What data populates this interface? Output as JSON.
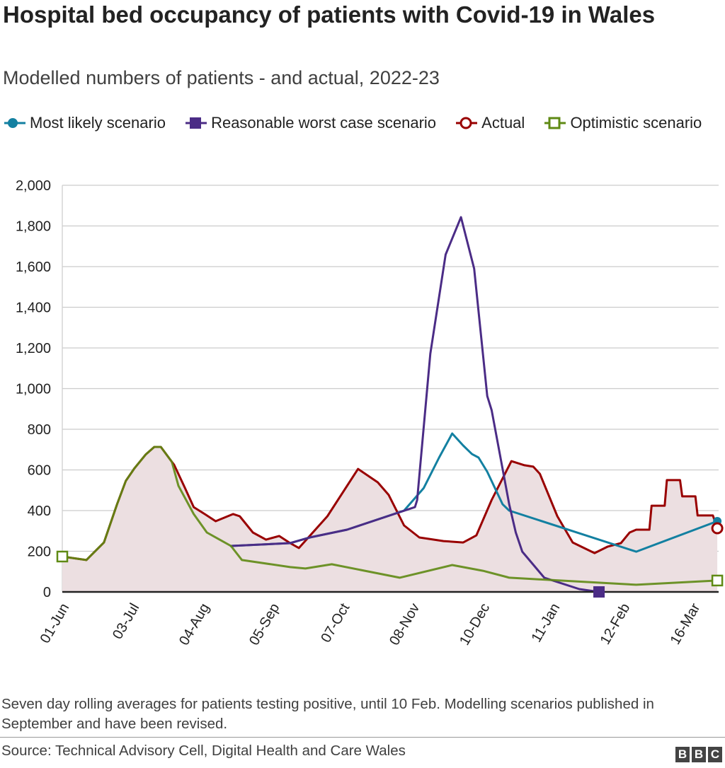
{
  "title": "Hospital bed occupancy of patients with Covid-19 in Wales",
  "subtitle": "Modelled numbers of patients - and actual, 2022-23",
  "footnote": "Seven day rolling averages for patients testing positive, until 10 Feb. Modelling scenarios published in September and have been revised.",
  "source": "Source: Technical Advisory Cell, Digital Health and Care Wales",
  "logo": [
    "B",
    "B",
    "C"
  ],
  "chart_data": {
    "type": "line",
    "title": "Hospital bed occupancy of patients with Covid-19 in Wales",
    "xlabel": "",
    "ylabel": "",
    "ylim": [
      0,
      2000
    ],
    "yticks": [
      "0",
      "200",
      "400",
      "600",
      "800",
      "1,000",
      "1,200",
      "1,400",
      "1,600",
      "1,800",
      "2,000"
    ],
    "ytick_values": [
      0,
      200,
      400,
      600,
      800,
      1000,
      1200,
      1400,
      1600,
      1800,
      2000
    ],
    "xlim": [
      "2022-06-01",
      "2023-03-27"
    ],
    "xticks": [
      "01-Jun",
      "03-Jul",
      "04-Aug",
      "05-Sep",
      "07-Oct",
      "08-Nov",
      "10-Dec",
      "11-Jan",
      "12-Feb",
      "16-Mar"
    ],
    "xtick_dates": [
      "2022-06-01",
      "2022-07-03",
      "2022-08-04",
      "2022-09-05",
      "2022-10-07",
      "2022-11-08",
      "2022-12-10",
      "2023-01-11",
      "2023-02-12",
      "2023-03-16"
    ],
    "grid": "horizontal",
    "legend_position": "top",
    "series": [
      {
        "name": "Actual",
        "color": "#990000",
        "fill": "#ecdfe1",
        "marker": "hollow-circle",
        "points": [
          [
            "2022-06-01",
            174
          ],
          [
            "2022-06-12",
            157
          ],
          [
            "2022-06-20",
            243
          ],
          [
            "2022-06-26",
            431
          ],
          [
            "2022-06-30",
            546
          ],
          [
            "2022-07-04",
            609
          ],
          [
            "2022-07-09",
            675
          ],
          [
            "2022-07-13",
            713
          ],
          [
            "2022-07-16",
            713
          ],
          [
            "2022-07-21",
            640
          ],
          [
            "2022-07-22",
            626
          ],
          [
            "2022-07-27",
            511
          ],
          [
            "2022-07-31",
            417
          ],
          [
            "2022-08-05",
            383
          ],
          [
            "2022-08-10",
            348
          ],
          [
            "2022-08-18",
            383
          ],
          [
            "2022-08-21",
            372
          ],
          [
            "2022-08-27",
            292
          ],
          [
            "2022-09-02",
            257
          ],
          [
            "2022-09-08",
            275
          ],
          [
            "2022-09-13",
            240
          ],
          [
            "2022-09-17",
            216
          ],
          [
            "2022-09-30",
            372
          ],
          [
            "2022-10-14",
            605
          ],
          [
            "2022-10-23",
            539
          ],
          [
            "2022-10-28",
            477
          ],
          [
            "2022-11-04",
            327
          ],
          [
            "2022-11-11",
            268
          ],
          [
            "2022-11-22",
            250
          ],
          [
            "2022-12-01",
            243
          ],
          [
            "2022-12-07",
            278
          ],
          [
            "2022-12-14",
            452
          ],
          [
            "2022-12-23",
            643
          ],
          [
            "2022-12-29",
            623
          ],
          [
            "2023-01-02",
            616
          ],
          [
            "2023-01-05",
            581
          ],
          [
            "2023-01-13",
            372
          ],
          [
            "2023-01-20",
            243
          ],
          [
            "2023-01-30",
            191
          ],
          [
            "2023-02-05",
            223
          ],
          [
            "2023-02-11",
            240
          ],
          [
            "2023-02-15",
            292
          ],
          [
            "2023-02-18",
            306
          ],
          [
            "2023-02-24",
            306
          ],
          [
            "2023-02-25",
            424
          ],
          [
            "2023-03-03",
            424
          ],
          [
            "2023-03-04",
            550
          ],
          [
            "2023-03-10",
            550
          ],
          [
            "2023-03-11",
            470
          ],
          [
            "2023-03-17",
            470
          ],
          [
            "2023-03-18",
            376
          ],
          [
            "2023-03-25",
            376
          ],
          [
            "2023-03-27",
            313
          ]
        ]
      },
      {
        "name": "Most likely scenario",
        "color": "#1380a1",
        "marker": "filled-circle",
        "points": [
          [
            "2022-08-17",
            226
          ],
          [
            "2022-09-13",
            240
          ],
          [
            "2022-09-22",
            268
          ],
          [
            "2022-10-09",
            306
          ],
          [
            "2022-11-04",
            400
          ],
          [
            "2022-11-13",
            511
          ],
          [
            "2022-11-20",
            661
          ],
          [
            "2022-11-26",
            779
          ],
          [
            "2022-12-01",
            720
          ],
          [
            "2022-12-05",
            678
          ],
          [
            "2022-12-08",
            661
          ],
          [
            "2022-12-12",
            591
          ],
          [
            "2022-12-19",
            431
          ],
          [
            "2022-12-22",
            400
          ],
          [
            "2023-02-18",
            198
          ],
          [
            "2023-03-27",
            348
          ]
        ]
      },
      {
        "name": "Reasonable worst case scenario",
        "color": "#4b2c86",
        "marker": "filled-square",
        "points": [
          [
            "2022-08-17",
            226
          ],
          [
            "2022-09-13",
            240
          ],
          [
            "2022-09-22",
            268
          ],
          [
            "2022-10-09",
            306
          ],
          [
            "2022-11-09",
            417
          ],
          [
            "2022-11-10",
            452
          ],
          [
            "2022-11-16",
            1172
          ],
          [
            "2022-11-23",
            1659
          ],
          [
            "2022-11-30",
            1843
          ],
          [
            "2022-12-06",
            1590
          ],
          [
            "2022-12-12",
            963
          ],
          [
            "2022-12-14",
            894
          ],
          [
            "2022-12-22",
            431
          ],
          [
            "2022-12-25",
            292
          ],
          [
            "2022-12-28",
            198
          ],
          [
            "2023-01-07",
            70
          ],
          [
            "2023-01-23",
            14
          ],
          [
            "2023-02-01",
            0
          ]
        ]
      },
      {
        "name": "Optimistic scenario",
        "color": "#5f8a14",
        "marker": "hollow-square",
        "points": [
          [
            "2022-06-01",
            174
          ],
          [
            "2022-06-12",
            157
          ],
          [
            "2022-06-20",
            243
          ],
          [
            "2022-06-26",
            431
          ],
          [
            "2022-06-30",
            546
          ],
          [
            "2022-07-04",
            609
          ],
          [
            "2022-07-09",
            675
          ],
          [
            "2022-07-13",
            713
          ],
          [
            "2022-07-16",
            713
          ],
          [
            "2022-07-21",
            640
          ],
          [
            "2022-07-24",
            522
          ],
          [
            "2022-07-31",
            383
          ],
          [
            "2022-08-06",
            292
          ],
          [
            "2022-08-17",
            226
          ],
          [
            "2022-08-22",
            157
          ],
          [
            "2022-09-13",
            122
          ],
          [
            "2022-09-20",
            115
          ],
          [
            "2022-10-02",
            136
          ],
          [
            "2022-11-02",
            70
          ],
          [
            "2022-11-26",
            132
          ],
          [
            "2022-12-10",
            104
          ],
          [
            "2022-12-21",
            73
          ],
          [
            "2022-12-22",
            70
          ],
          [
            "2023-02-18",
            35
          ],
          [
            "2023-03-27",
            56
          ]
        ]
      }
    ]
  }
}
